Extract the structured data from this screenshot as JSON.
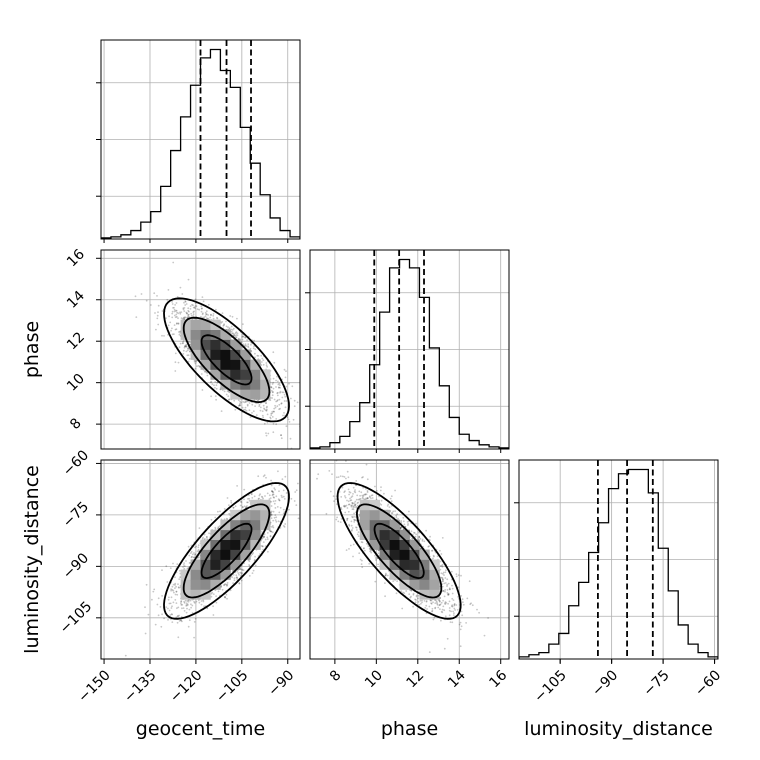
{
  "chart_data": {
    "type": "corner",
    "parameters": [
      "geocent_time",
      "phase",
      "luminosity_distance"
    ],
    "axis_labels": {
      "geocent_time": "geocent_time",
      "phase": "phase",
      "luminosity_distance": "luminosity_distance"
    },
    "ranges": {
      "geocent_time": [
        -151,
        -86
      ],
      "phase": [
        6.8,
        16.4
      ],
      "luminosity_distance": [
        -117,
        -59
      ]
    },
    "ticks": {
      "geocent_time": [
        -150,
        -135,
        -120,
        -105,
        -90
      ],
      "phase": [
        8,
        10,
        12,
        14,
        16
      ],
      "luminosity_distance": [
        -105,
        -90,
        -75,
        -60
      ]
    },
    "tick_labels": {
      "geocent_time": [
        "−150",
        "−135",
        "−120",
        "−105",
        "−90"
      ],
      "phase": [
        "8",
        "10",
        "12",
        "14",
        "16"
      ],
      "luminosity_distance": [
        "−105",
        "−90",
        "−75",
        "−60"
      ]
    },
    "quantiles": {
      "geocent_time": [
        -118.5,
        -110,
        -102
      ],
      "phase": [
        9.9,
        11.1,
        12.3
      ],
      "luminosity_distance": [
        -94,
        -85.5,
        -78
      ]
    },
    "histograms": {
      "geocent_time": {
        "edges": [
          -151,
          -147.75,
          -144.5,
          -141.25,
          -138,
          -134.75,
          -131.5,
          -128.25,
          -125,
          -121.75,
          -118.5,
          -115.25,
          -112,
          -108.75,
          -105.5,
          -102.25,
          -99,
          -95.75,
          -92.5,
          -89.25,
          -86
        ],
        "counts": [
          0.5,
          1,
          2,
          4,
          8,
          13,
          25,
          42,
          58,
          73,
          86,
          90,
          80,
          72,
          53,
          36,
          21,
          10,
          4,
          1
        ]
      },
      "phase": {
        "edges": [
          6.8,
          7.28,
          7.76,
          8.24,
          8.72,
          9.2,
          9.68,
          10.16,
          10.64,
          11.12,
          11.6,
          12.08,
          12.56,
          13.04,
          13.52,
          14.0,
          14.48,
          14.96,
          15.44,
          15.92,
          16.4
        ],
        "counts": [
          0.5,
          1,
          3,
          6,
          13,
          22,
          40,
          65,
          86,
          90,
          86,
          72,
          48,
          30,
          15,
          7,
          4,
          2,
          1,
          0.5
        ]
      },
      "luminosity_distance": {
        "edges": [
          -117,
          -114.1,
          -111.2,
          -108.3,
          -105.4,
          -102.5,
          -99.6,
          -96.7,
          -93.8,
          -90.9,
          -88,
          -85.1,
          -82.2,
          -79.3,
          -76.4,
          -73.5,
          -70.6,
          -67.7,
          -64.8,
          -61.9,
          -59
        ],
        "counts": [
          1,
          2,
          3,
          7,
          12,
          25,
          36,
          50,
          64,
          80,
          87,
          89,
          89,
          78,
          52,
          32,
          16,
          7,
          3,
          1
        ]
      }
    },
    "correlations": {
      "phase|geocent_time": -0.75,
      "luminosity_distance|geocent_time": 0.8,
      "luminosity_distance|phase": -0.8
    },
    "contour_sigmas": [
      0.7,
      1.2,
      1.75
    ],
    "grid": true
  }
}
